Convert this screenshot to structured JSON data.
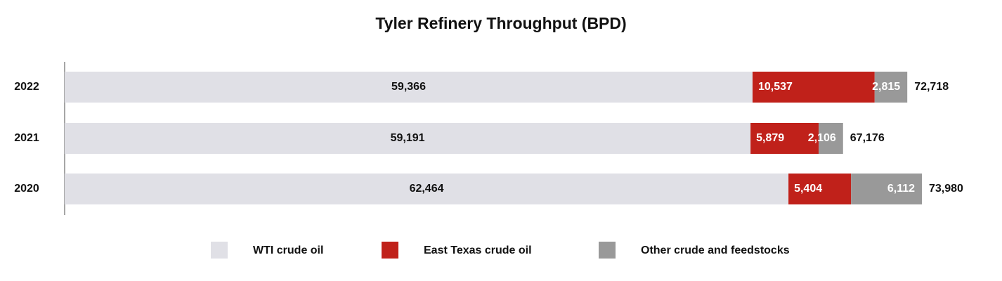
{
  "chart_data": {
    "type": "stacked-bar-horizontal",
    "title": "Tyler Refinery Throughput (BPD)",
    "categories": [
      "2022",
      "2021",
      "2020"
    ],
    "series": [
      {
        "name": "WTI crude oil",
        "color": "#e0e0e6",
        "values": [
          59366,
          59191,
          62464
        ],
        "value_labels": [
          "59,366",
          "59,191",
          "62,464"
        ]
      },
      {
        "name": "East Texas crude oil",
        "color": "#c0211a",
        "values": [
          10537,
          5879,
          5404
        ],
        "value_labels": [
          "10,537",
          "5,879",
          "5,404"
        ]
      },
      {
        "name": "Other crude and feedstocks",
        "color": "#999999",
        "values": [
          2815,
          2106,
          6112
        ],
        "value_labels": [
          "2,815",
          "2,106",
          "6,112"
        ]
      }
    ],
    "totals": [
      72718,
      67176,
      73980
    ],
    "total_labels": [
      "72,718",
      "67,176",
      "73,980"
    ],
    "legend": "bottom"
  }
}
